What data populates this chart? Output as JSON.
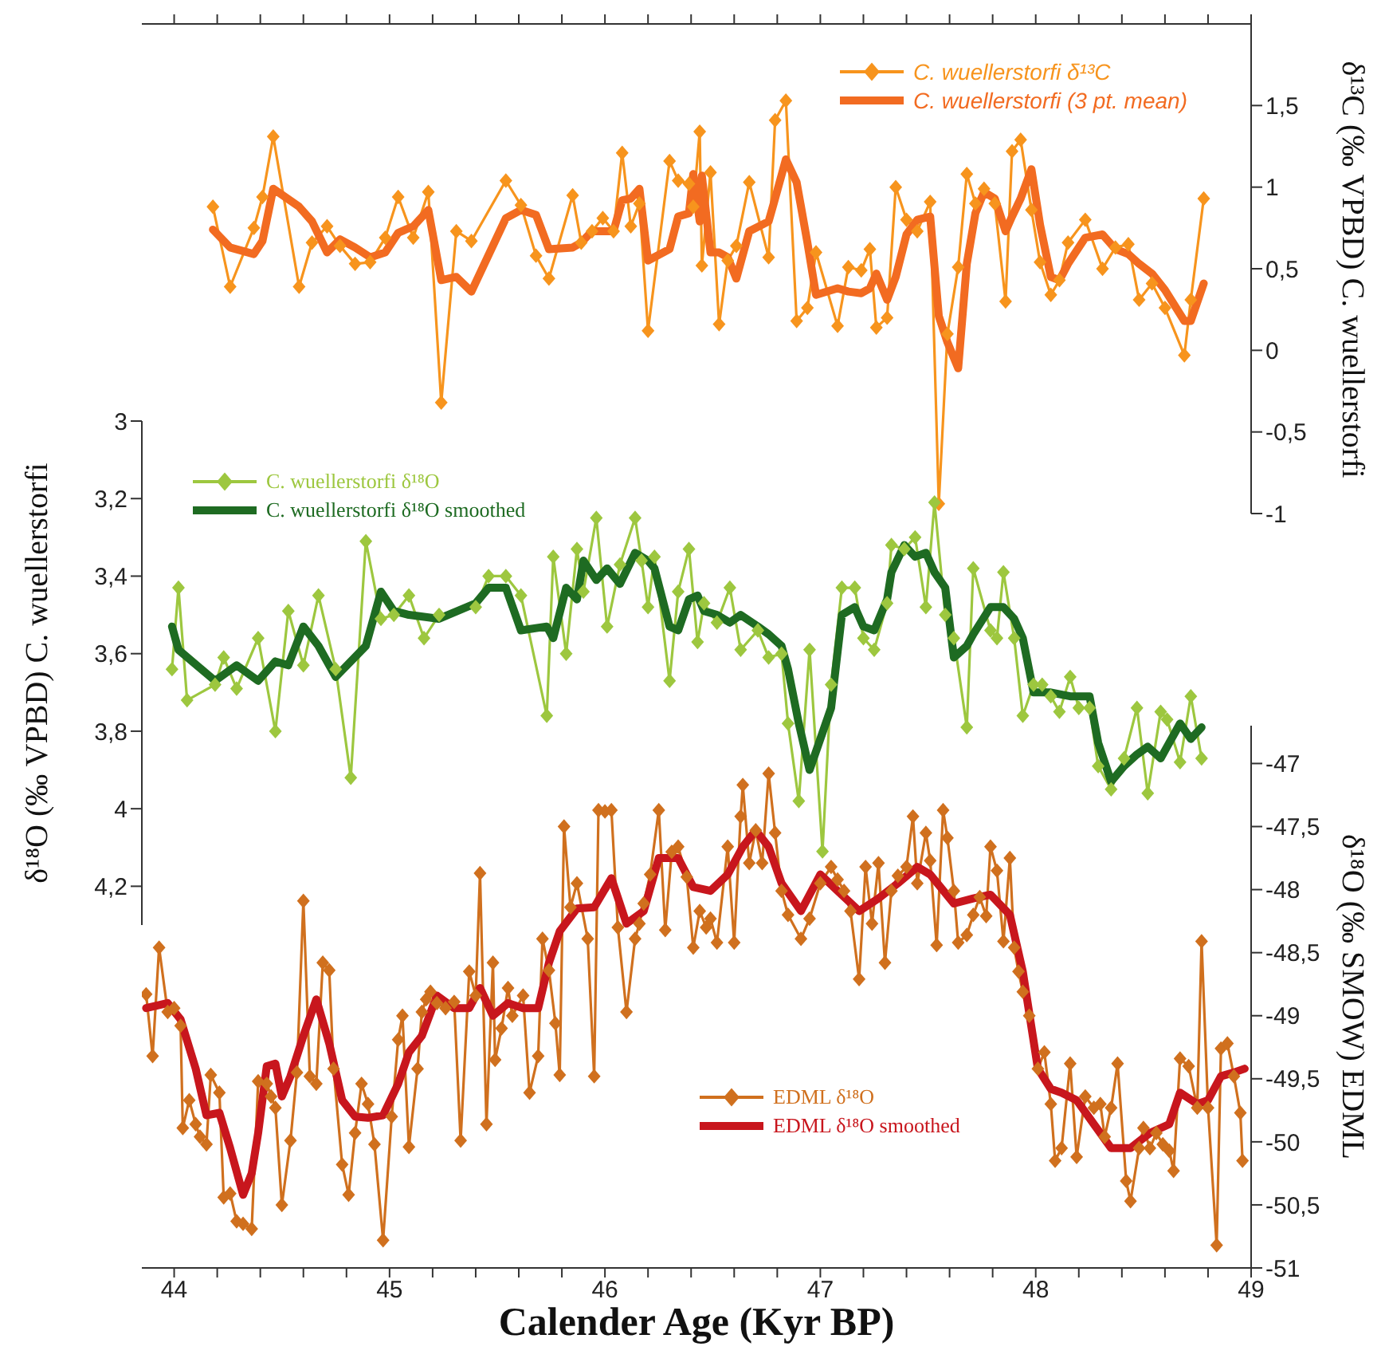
{
  "chart_data": [
    {
      "type": "line",
      "y2label": "δ¹³C (‰ VPBD) C. wuellerstorfi",
      "xlim": [
        43.85,
        49
      ],
      "tick_labels": "y",
      "xticks": [
        {
          "value": 44,
          "label": null
        },
        {
          "value": 44.2,
          "label": null
        },
        {
          "value": 44.4,
          "label": null
        },
        {
          "value": 44.6,
          "label": null
        },
        {
          "value": 44.8,
          "label": null
        },
        {
          "value": 45,
          "label": null
        },
        {
          "value": 45.2,
          "label": null
        },
        {
          "value": 45.4,
          "label": null
        },
        {
          "value": 45.6,
          "label": null
        },
        {
          "value": 45.8,
          "label": null
        },
        {
          "value": 46,
          "label": null
        },
        {
          "value": 46.2,
          "label": null
        },
        {
          "value": 46.4,
          "label": null
        },
        {
          "value": 46.6,
          "label": null
        },
        {
          "value": 46.8,
          "label": null
        },
        {
          "value": 47,
          "label": null
        },
        {
          "value": 47.2,
          "label": null
        },
        {
          "value": 47.4,
          "label": null
        },
        {
          "value": 47.6,
          "label": null
        },
        {
          "value": 47.8,
          "label": null
        },
        {
          "value": 48,
          "label": null
        },
        {
          "value": 48.2,
          "label": null
        },
        {
          "value": 48.4,
          "label": null
        },
        {
          "value": 48.6,
          "label": null
        },
        {
          "value": 48.8,
          "label": null
        },
        {
          "value": 49,
          "label": null
        }
      ],
      "y2lim": [
        -1,
        2
      ],
      "y2ticks": [
        -1,
        {
          "value": -0.5,
          "label": "-0,5"
        },
        0,
        {
          "value": 0.5,
          "label": "0,5"
        },
        1,
        {
          "value": 1.5,
          "label": "1,5"
        }
      ],
      "legend": "top right",
      "x": [
        44.18,
        44.26,
        44.37,
        44.41,
        44.46,
        44.58,
        44.64,
        44.71,
        44.77,
        44.84,
        44.91,
        44.98,
        45.04,
        45.11,
        45.18,
        45.24,
        45.31,
        45.38,
        45.54,
        45.61,
        45.68,
        45.74,
        45.85,
        45.89,
        45.94,
        45.99,
        46.04,
        46.08,
        46.12,
        46.16,
        46.2,
        46.3,
        46.34,
        46.39,
        46.41,
        46.44,
        46.45,
        46.49,
        46.53,
        46.57,
        46.61,
        46.67,
        46.76,
        46.79,
        46.84,
        46.89,
        46.94,
        46.98,
        47.08,
        47.13,
        47.19,
        47.23,
        47.26,
        47.31,
        47.35,
        47.4,
        47.45,
        47.51,
        47.55,
        47.59,
        47.64,
        47.68,
        47.72,
        47.76,
        47.81,
        47.86,
        47.89,
        47.93,
        47.98,
        48.02,
        48.07,
        48.11,
        48.15,
        48.23,
        48.31,
        48.37,
        48.43,
        48.48,
        48.54,
        48.6,
        48.69,
        48.72,
        48.78
      ],
      "series": [
        {
          "name": "C. wuellerstorfi δ¹³C",
          "color": "#f7941d",
          "axis": "y2",
          "marker": "diamond",
          "values": [
            0.88,
            0.39,
            0.75,
            0.94,
            1.31,
            0.39,
            0.66,
            0.76,
            0.64,
            0.53,
            0.54,
            0.69,
            0.94,
            0.69,
            0.97,
            -0.32,
            0.73,
            0.67,
            1.04,
            0.89,
            0.58,
            0.44,
            0.95,
            0.66,
            0.73,
            0.81,
            0.73,
            1.21,
            0.76,
            0.9,
            0.12,
            1.16,
            1.04,
            1.02,
            0.88,
            1.34,
            0.52,
            1.09,
            0.16,
            0.55,
            0.64,
            1.03,
            0.57,
            1.41,
            1.53,
            0.18,
            0.26,
            0.6,
            0.15,
            0.51,
            0.49,
            0.62,
            0.14,
            0.2,
            1.0,
            0.8,
            0.73,
            0.91,
            -0.94,
            0.1,
            0.51,
            1.08,
            0.9,
            0.99,
            0.9,
            0.3,
            1.22,
            1.29,
            0.86,
            0.54,
            0.34,
            0.43,
            0.66,
            0.8,
            0.5,
            0.63,
            0.65,
            0.31,
            0.41,
            0.26,
            -0.03,
            0.31,
            0.93
          ]
        },
        {
          "name": "C. wuellerstorfi (3 pt. mean)",
          "color": "#f26b21",
          "axis": "y2",
          "values": [
            0.74,
            0.63,
            0.59,
            0.67,
            0.99,
            0.88,
            0.79,
            0.6,
            0.68,
            0.63,
            0.57,
            0.6,
            0.72,
            0.76,
            0.86,
            0.43,
            0.45,
            0.36,
            0.81,
            0.86,
            0.83,
            0.62,
            0.63,
            0.66,
            0.73,
            0.73,
            0.73,
            0.92,
            0.93,
            0.99,
            0.55,
            0.62,
            0.82,
            0.84,
            1.08,
            0.79,
            1.07,
            0.6,
            0.6,
            0.57,
            0.44,
            0.73,
            0.79,
            0.93,
            1.17,
            1.03,
            0.66,
            0.34,
            0.38,
            0.36,
            0.35,
            0.38,
            0.47,
            0.31,
            0.45,
            0.71,
            0.8,
            0.82,
            0.21,
            0.05,
            -0.11,
            0.53,
            0.84,
            0.97,
            0.93,
            0.73,
            0.82,
            0.93,
            1.11,
            0.77,
            0.45,
            0.43,
            0.53,
            0.69,
            0.71,
            0.62,
            0.59,
            0.53,
            0.47,
            0.37,
            0.18,
            0.18,
            0.41
          ]
        }
      ]
    },
    {
      "type": "line",
      "ylabel": "δ¹⁸O  (‰ VPBD) C. wuellerstorfi",
      "xlim": [
        43.85,
        49
      ],
      "tick_labels": "y",
      "ylim": [
        4.3,
        3
      ],
      "yticks": [
        3,
        {
          "value": 3.2,
          "label": "3,2"
        },
        {
          "value": 3.4,
          "label": "3,4"
        },
        {
          "value": 3.6,
          "label": "3,6"
        },
        {
          "value": 3.8,
          "label": "3,8"
        },
        4,
        {
          "value": 4.2,
          "label": "4,2"
        }
      ],
      "legend": "top left",
      "series": [
        {
          "name": "C. wuellerstorfi δ¹⁸O",
          "color": "#9dc73f",
          "marker": "diamond",
          "x": [
            43.99,
            44.02,
            44.06,
            44.19,
            44.23,
            44.29,
            44.39,
            44.47,
            44.53,
            44.6,
            44.67,
            44.75,
            44.82,
            44.89,
            44.96,
            45.02,
            45.09,
            45.16,
            45.23,
            45.4,
            45.46,
            45.54,
            45.61,
            45.73,
            45.76,
            45.82,
            45.87,
            45.9,
            45.96,
            46.01,
            46.07,
            46.14,
            46.17,
            46.2,
            46.23,
            46.3,
            46.34,
            46.39,
            46.43,
            46.46,
            46.52,
            46.58,
            46.63,
            46.71,
            46.76,
            46.82,
            46.85,
            46.9,
            46.95,
            47.01,
            47.05,
            47.1,
            47.16,
            47.2,
            47.25,
            47.31,
            47.33,
            47.39,
            47.44,
            47.49,
            47.53,
            47.58,
            47.62,
            47.68,
            47.71,
            47.79,
            47.82,
            47.85,
            47.9,
            47.94,
            47.99,
            48.03,
            48.07,
            48.11,
            48.16,
            48.2,
            48.25,
            48.29,
            48.35,
            48.41,
            48.47,
            48.52,
            48.58,
            48.61,
            48.67,
            48.72,
            48.77
          ],
          "values": [
            3.64,
            3.43,
            3.72,
            3.68,
            3.61,
            3.69,
            3.56,
            3.8,
            3.49,
            3.63,
            3.45,
            3.64,
            3.92,
            3.31,
            3.51,
            3.5,
            3.45,
            3.56,
            3.5,
            3.48,
            3.4,
            3.4,
            3.45,
            3.76,
            3.35,
            3.6,
            3.33,
            3.44,
            3.25,
            3.53,
            3.37,
            3.25,
            3.36,
            3.48,
            3.35,
            3.67,
            3.44,
            3.33,
            3.57,
            3.47,
            3.52,
            3.43,
            3.59,
            3.54,
            3.61,
            3.6,
            3.78,
            3.98,
            3.59,
            4.11,
            3.68,
            3.43,
            3.43,
            3.56,
            3.59,
            3.47,
            3.32,
            3.33,
            3.3,
            3.48,
            3.21,
            3.5,
            3.56,
            3.79,
            3.38,
            3.54,
            3.56,
            3.39,
            3.56,
            3.76,
            3.68,
            3.68,
            3.71,
            3.75,
            3.66,
            3.74,
            3.74,
            3.89,
            3.95,
            3.87,
            3.74,
            3.96,
            3.75,
            3.77,
            3.88,
            3.71,
            3.87
          ]
        },
        {
          "name": "C. wuellerstorfi δ¹⁸O smoothed",
          "color": "#1e6b22",
          "x": [
            43.99,
            44.02,
            44.19,
            44.29,
            44.39,
            44.47,
            44.53,
            44.6,
            44.67,
            44.75,
            44.89,
            44.96,
            45.02,
            45.09,
            45.23,
            45.4,
            45.46,
            45.54,
            45.61,
            45.73,
            45.76,
            45.82,
            45.87,
            45.9,
            45.96,
            46.01,
            46.07,
            46.14,
            46.2,
            46.23,
            46.3,
            46.34,
            46.39,
            46.43,
            46.46,
            46.52,
            46.58,
            46.63,
            46.71,
            46.76,
            46.82,
            46.85,
            46.9,
            46.95,
            47.05,
            47.1,
            47.16,
            47.2,
            47.25,
            47.31,
            47.33,
            47.39,
            47.44,
            47.49,
            47.53,
            47.58,
            47.62,
            47.68,
            47.71,
            47.79,
            47.85,
            47.9,
            47.94,
            47.99,
            48.07,
            48.16,
            48.25,
            48.29,
            48.35,
            48.41,
            48.47,
            48.52,
            48.58,
            48.61,
            48.67,
            48.72,
            48.77
          ],
          "values": [
            3.53,
            3.59,
            3.67,
            3.63,
            3.67,
            3.62,
            3.63,
            3.53,
            3.58,
            3.66,
            3.58,
            3.44,
            3.49,
            3.5,
            3.51,
            3.47,
            3.43,
            3.43,
            3.54,
            3.53,
            3.56,
            3.43,
            3.46,
            3.36,
            3.41,
            3.38,
            3.42,
            3.34,
            3.36,
            3.38,
            3.53,
            3.54,
            3.46,
            3.45,
            3.49,
            3.5,
            3.52,
            3.5,
            3.53,
            3.55,
            3.58,
            3.64,
            3.78,
            3.9,
            3.74,
            3.5,
            3.48,
            3.53,
            3.54,
            3.46,
            3.39,
            3.32,
            3.35,
            3.34,
            3.39,
            3.43,
            3.61,
            3.58,
            3.55,
            3.48,
            3.48,
            3.51,
            3.56,
            3.7,
            3.7,
            3.71,
            3.71,
            3.83,
            3.93,
            3.89,
            3.86,
            3.84,
            3.87,
            3.84,
            3.78,
            3.82,
            3.79
          ]
        }
      ]
    },
    {
      "type": "line",
      "xlabel": "Calender Age (Kyr BP)",
      "y2label": "δ¹⁸O  (‰ SMOW) EDML",
      "xlim": [
        43.85,
        49
      ],
      "xticks": [
        44,
        {
          "value": 44.2,
          "label": null
        },
        {
          "value": 44.4,
          "label": null
        },
        {
          "value": 44.6,
          "label": null
        },
        {
          "value": 44.8,
          "label": null
        },
        45,
        {
          "value": 45.2,
          "label": null
        },
        {
          "value": 45.4,
          "label": null
        },
        {
          "value": 45.6,
          "label": null
        },
        {
          "value": 45.8,
          "label": null
        },
        46,
        {
          "value": 46.2,
          "label": null
        },
        {
          "value": 46.4,
          "label": null
        },
        {
          "value": 46.6,
          "label": null
        },
        {
          "value": 46.8,
          "label": null
        },
        47,
        {
          "value": 47.2,
          "label": null
        },
        {
          "value": 47.4,
          "label": null
        },
        {
          "value": 47.6,
          "label": null
        },
        {
          "value": 47.8,
          "label": null
        },
        48,
        {
          "value": 48.2,
          "label": null
        },
        {
          "value": 48.4,
          "label": null
        },
        {
          "value": 48.6,
          "label": null
        },
        {
          "value": 48.8,
          "label": null
        },
        49
      ],
      "y2lim": [
        -51,
        -46.7
      ],
      "y2ticks": [
        -51,
        {
          "value": -50.5,
          "label": "-50,5"
        },
        -50,
        {
          "value": -49.5,
          "label": "-49,5"
        },
        -49,
        {
          "value": -48.5,
          "label": "-48,5"
        },
        -48,
        {
          "value": -47.5,
          "label": "-47,5"
        },
        -47
      ],
      "legend": "bottom",
      "series": [
        {
          "name": "EDML δ¹⁸O",
          "color": "#d0701e",
          "axis": "y2",
          "marker": "diamond",
          "x": [
            43.87,
            43.9,
            43.93,
            43.97,
            44.0,
            44.03,
            44.04,
            44.07,
            44.1,
            44.12,
            44.15,
            44.17,
            44.21,
            44.23,
            44.26,
            44.29,
            44.32,
            44.36,
            44.39,
            44.43,
            44.45,
            44.47,
            44.5,
            44.54,
            44.57,
            44.6,
            44.63,
            44.66,
            44.69,
            44.72,
            44.74,
            44.78,
            44.81,
            44.84,
            44.87,
            44.9,
            44.93,
            44.97,
            45.01,
            45.04,
            45.06,
            45.09,
            45.13,
            45.15,
            45.17,
            45.19,
            45.22,
            45.26,
            45.3,
            45.33,
            45.37,
            45.4,
            45.42,
            45.45,
            45.48,
            45.49,
            45.52,
            45.55,
            45.57,
            45.62,
            45.65,
            45.69,
            45.71,
            45.74,
            45.77,
            45.79,
            45.81,
            45.84,
            45.87,
            45.92,
            45.95,
            45.97,
            46.0,
            46.03,
            46.06,
            46.1,
            46.14,
            46.16,
            46.18,
            46.21,
            46.25,
            46.28,
            46.31,
            46.34,
            46.38,
            46.41,
            46.44,
            46.47,
            46.49,
            46.52,
            46.57,
            46.6,
            46.63,
            46.64,
            46.67,
            46.7,
            46.73,
            46.76,
            46.79,
            46.82,
            46.85,
            46.91,
            46.95,
            47.0,
            47.05,
            47.08,
            47.11,
            47.14,
            47.18,
            47.21,
            47.24,
            47.27,
            47.3,
            47.33,
            47.36,
            47.4,
            47.43,
            47.45,
            47.49,
            47.51,
            47.54,
            47.57,
            47.59,
            47.62,
            47.64,
            47.68,
            47.71,
            47.74,
            47.77,
            47.79,
            47.82,
            47.85,
            47.88,
            47.9,
            47.92,
            47.94,
            47.97,
            48.01,
            48.04,
            48.07,
            48.09,
            48.12,
            48.16,
            48.19,
            48.23,
            48.27,
            48.3,
            48.32,
            48.35,
            48.38,
            48.42,
            48.44,
            48.48,
            48.5,
            48.53,
            48.56,
            48.59,
            48.62,
            48.64,
            48.67,
            48.71,
            48.75,
            48.77,
            48.8,
            48.84,
            48.86,
            48.89,
            48.92,
            48.95,
            48.96
          ],
          "values": [
            -48.83,
            -49.32,
            -48.46,
            -48.97,
            -48.94,
            -49.08,
            -49.89,
            -49.67,
            -49.86,
            -49.96,
            -50.02,
            -49.47,
            -49.61,
            -50.44,
            -50.41,
            -50.63,
            -50.65,
            -50.69,
            -49.52,
            -49.54,
            -49.64,
            -49.73,
            -50.5,
            -49.99,
            -49.45,
            -48.09,
            -49.48,
            -49.54,
            -48.58,
            -48.64,
            -49.42,
            -50.18,
            -50.42,
            -49.93,
            -49.54,
            -49.7,
            -50.02,
            -50.78,
            -49.8,
            -49.19,
            -49.0,
            -50.04,
            -49.42,
            -48.97,
            -48.87,
            -48.81,
            -48.9,
            -48.94,
            -48.89,
            -49.99,
            -48.65,
            -48.84,
            -47.87,
            -49.86,
            -48.58,
            -49.35,
            -49.1,
            -48.78,
            -49.0,
            -48.84,
            -49.61,
            -49.32,
            -48.39,
            -48.64,
            -49.06,
            -49.47,
            -47.5,
            -48.14,
            -47.95,
            -48.39,
            -49.48,
            -47.37,
            -47.38,
            -47.37,
            -48.3,
            -48.97,
            -48.39,
            -48.27,
            -48.11,
            -47.88,
            -47.37,
            -48.32,
            -47.7,
            -47.66,
            -47.9,
            -48.46,
            -48.17,
            -48.3,
            -48.23,
            -48.42,
            -47.66,
            -48.42,
            -47.42,
            -47.17,
            -47.79,
            -47.53,
            -47.79,
            -47.08,
            -47.55,
            -48.01,
            -48.2,
            -48.39,
            -48.23,
            -47.95,
            -47.82,
            -47.92,
            -48.01,
            -48.17,
            -48.71,
            -47.82,
            -48.27,
            -47.79,
            -48.58,
            -48.01,
            -47.89,
            -47.82,
            -47.42,
            -47.95,
            -47.55,
            -47.77,
            -48.44,
            -47.37,
            -47.59,
            -48.01,
            -48.42,
            -48.36,
            -48.2,
            -48.06,
            -48.21,
            -47.66,
            -47.85,
            -48.41,
            -47.75,
            -48.46,
            -48.65,
            -48.81,
            -49.0,
            -49.42,
            -49.29,
            -49.7,
            -50.15,
            -50.05,
            -49.38,
            -50.12,
            -49.64,
            -49.73,
            -49.7,
            -49.96,
            -49.73,
            -49.38,
            -50.31,
            -50.47,
            -50.05,
            -49.89,
            -50.05,
            -49.93,
            -50.02,
            -50.07,
            -50.23,
            -49.34,
            -49.4,
            -49.73,
            -48.41,
            -49.73,
            -50.82,
            -49.26,
            -49.22,
            -49.48,
            -49.77,
            -50.15
          ]
        },
        {
          "name": "EDML δ¹⁸O smoothed",
          "color": "#c8161d",
          "axis": "y2",
          "x": [
            43.87,
            43.97,
            44.03,
            44.1,
            44.15,
            44.21,
            44.26,
            44.32,
            44.36,
            44.39,
            44.43,
            44.47,
            44.5,
            44.54,
            44.6,
            44.66,
            44.72,
            44.78,
            44.84,
            44.9,
            44.97,
            45.04,
            45.09,
            45.15,
            45.22,
            45.3,
            45.37,
            45.42,
            45.48,
            45.55,
            45.62,
            45.69,
            45.74,
            45.79,
            45.87,
            45.95,
            46.03,
            46.1,
            46.18,
            46.25,
            46.34,
            46.41,
            46.49,
            46.57,
            46.64,
            46.7,
            46.76,
            46.82,
            46.91,
            47.0,
            47.08,
            47.18,
            47.27,
            47.36,
            47.45,
            47.51,
            47.62,
            47.71,
            47.79,
            47.88,
            47.94,
            48.01,
            48.07,
            48.12,
            48.19,
            48.27,
            48.35,
            48.44,
            48.53,
            48.62,
            48.67,
            48.75,
            48.8,
            48.86,
            48.92,
            48.97
          ],
          "values": [
            -48.94,
            -48.9,
            -49.03,
            -49.42,
            -49.79,
            -49.77,
            -50.05,
            -50.42,
            -50.25,
            -49.93,
            -49.4,
            -49.38,
            -49.64,
            -49.48,
            -49.16,
            -48.87,
            -49.22,
            -49.67,
            -49.8,
            -49.81,
            -49.79,
            -49.54,
            -49.29,
            -49.16,
            -48.84,
            -48.94,
            -48.94,
            -48.78,
            -49.0,
            -48.9,
            -48.94,
            -48.94,
            -48.58,
            -48.33,
            -48.15,
            -48.14,
            -47.91,
            -48.27,
            -48.17,
            -47.75,
            -47.75,
            -47.98,
            -48.01,
            -47.88,
            -47.66,
            -47.53,
            -47.66,
            -47.95,
            -48.17,
            -47.88,
            -48.01,
            -48.17,
            -48.07,
            -47.95,
            -47.82,
            -47.88,
            -48.11,
            -48.07,
            -48.04,
            -48.2,
            -48.65,
            -49.42,
            -49.58,
            -49.61,
            -49.67,
            -49.86,
            -50.05,
            -50.05,
            -49.93,
            -49.86,
            -49.61,
            -49.7,
            -49.67,
            -49.48,
            -49.45,
            -49.42
          ]
        }
      ]
    }
  ]
}
